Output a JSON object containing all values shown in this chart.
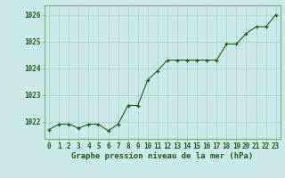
{
  "x": [
    0,
    1,
    2,
    3,
    4,
    5,
    6,
    7,
    8,
    9,
    10,
    11,
    12,
    13,
    14,
    15,
    16,
    17,
    18,
    19,
    20,
    21,
    22,
    23
  ],
  "y": [
    1021.7,
    1021.9,
    1021.9,
    1021.75,
    1021.9,
    1021.9,
    1021.65,
    1021.9,
    1022.6,
    1022.6,
    1023.55,
    1023.9,
    1024.3,
    1024.3,
    1024.3,
    1024.3,
    1024.3,
    1024.3,
    1024.9,
    1024.9,
    1025.3,
    1025.55,
    1025.55,
    1026.0
  ],
  "line_color": "#1a5c1a",
  "marker_color": "#1a5c1a",
  "bg_color": "#cce8e8",
  "grid_color": "#aacccc",
  "axis_label_color": "#1a5c1a",
  "tick_color": "#1a5c1a",
  "border_color": "#7aaa7a",
  "ylabel_ticks": [
    1022,
    1023,
    1024,
    1025,
    1026
  ],
  "ylim": [
    1021.35,
    1026.35
  ],
  "xlim": [
    -0.5,
    23.5
  ],
  "xlabel": "Graphe pression niveau de la mer (hPa)",
  "xlabel_fontsize": 6.5,
  "tick_fontsize": 5.5
}
